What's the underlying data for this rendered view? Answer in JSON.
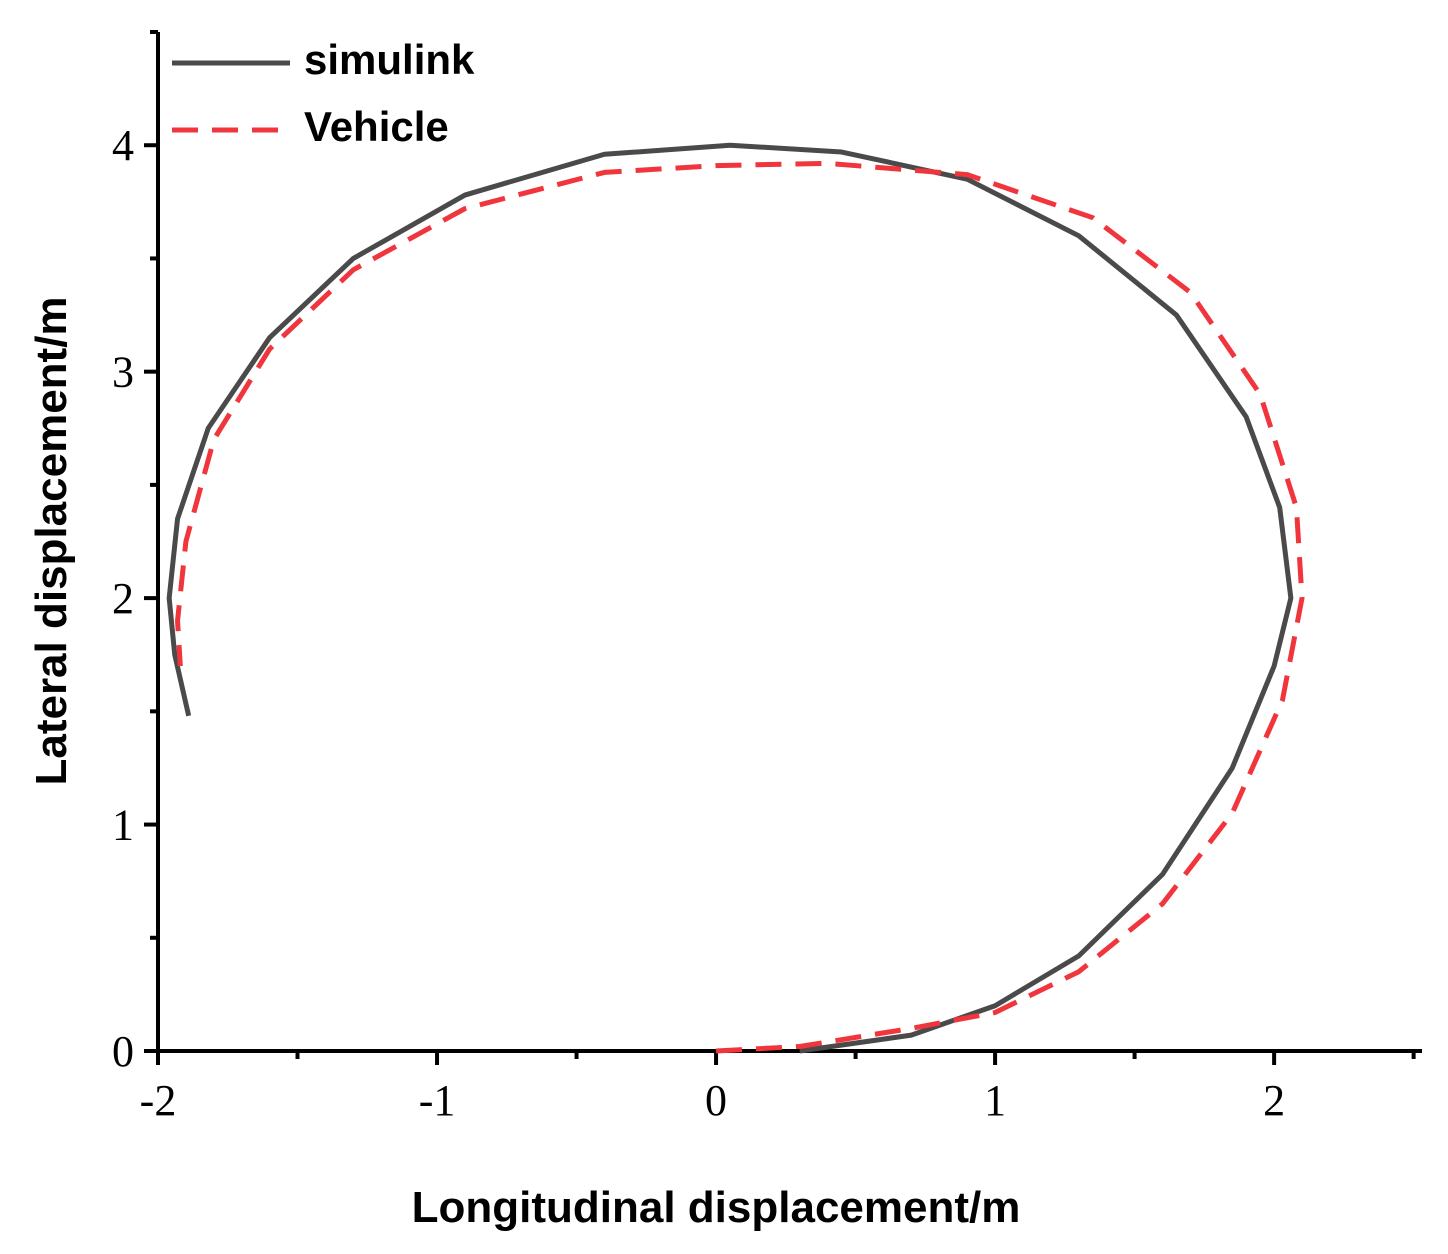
{
  "chart_data": {
    "type": "line",
    "x_label": "Longitudinal displacement/m",
    "y_label": "Lateral displacement/m",
    "xlim": [
      -2,
      2.53
    ],
    "ylim": [
      0,
      4.5
    ],
    "xticks": [
      -2,
      -1,
      0,
      1,
      2
    ],
    "yticks": [
      0,
      1,
      2,
      3,
      4
    ],
    "xminorticks": [
      -1.5,
      -0.5,
      0.5,
      1.5,
      2.5
    ],
    "yminorticks": [
      0.5,
      1.5,
      2.5,
      3.5,
      4.5
    ],
    "legend": "upper left",
    "series": [
      {
        "name": "simulink",
        "color": "#4a4a4a",
        "dash": false,
        "x": [
          0.3,
          0.7,
          1.0,
          1.3,
          1.6,
          1.85,
          2.0,
          2.06,
          2.02,
          1.9,
          1.65,
          1.3,
          0.9,
          0.45,
          0.05,
          -0.4,
          -0.9,
          -1.3,
          -1.6,
          -1.82,
          -1.93,
          -1.96,
          -1.94,
          -1.89
        ],
        "values": [
          0,
          0.07,
          0.2,
          0.42,
          0.78,
          1.25,
          1.7,
          2.0,
          2.4,
          2.8,
          3.25,
          3.6,
          3.85,
          3.97,
          4.0,
          3.96,
          3.78,
          3.5,
          3.15,
          2.75,
          2.35,
          2.0,
          1.75,
          1.48
        ]
      },
      {
        "name": "Vehicle",
        "color": "#f0363c",
        "dash": true,
        "x": [
          0,
          0.3,
          0.7,
          1.0,
          1.3,
          1.6,
          1.85,
          2.03,
          2.1,
          2.08,
          1.95,
          1.7,
          1.35,
          0.9,
          0.4,
          0.0,
          -0.4,
          -0.9,
          -1.3,
          -1.6,
          -1.8,
          -1.9,
          -1.93,
          -1.92
        ],
        "values": [
          0,
          0.02,
          0.1,
          0.17,
          0.35,
          0.65,
          1.05,
          1.55,
          2.0,
          2.4,
          2.9,
          3.35,
          3.68,
          3.87,
          3.92,
          3.91,
          3.88,
          3.72,
          3.45,
          3.1,
          2.7,
          2.25,
          1.9,
          1.7
        ]
      }
    ]
  }
}
